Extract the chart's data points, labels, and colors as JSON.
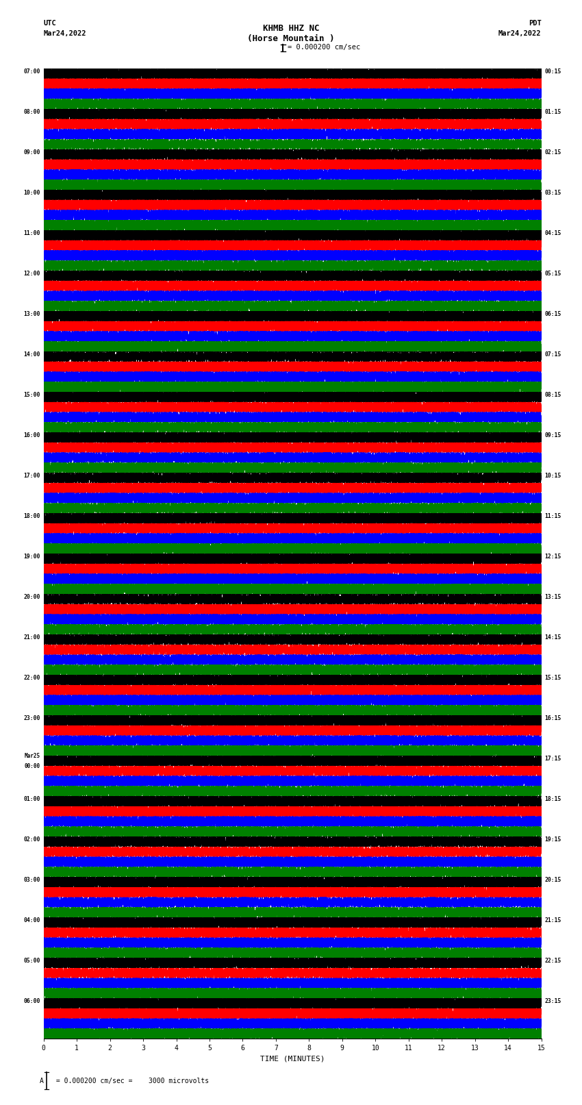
{
  "title_line1": "KHMB HHZ NC",
  "title_line2": "(Horse Mountain )",
  "scale_text": "= 0.000200 cm/sec",
  "left_header": "UTC",
  "left_date": "Mar24,2022",
  "right_header": "PDT",
  "right_date": "Mar24,2022",
  "bottom_label": "TIME (MINUTES)",
  "footnote": " = 0.000200 cm/sec =    3000 microvolts",
  "utc_labels": [
    "07:00",
    "08:00",
    "09:00",
    "10:00",
    "11:00",
    "12:00",
    "13:00",
    "14:00",
    "15:00",
    "16:00",
    "17:00",
    "18:00",
    "19:00",
    "20:00",
    "21:00",
    "22:00",
    "23:00",
    "Mar25\n00:00",
    "01:00",
    "02:00",
    "03:00",
    "04:00",
    "05:00",
    "06:00"
  ],
  "pdt_labels": [
    "00:15",
    "01:15",
    "02:15",
    "03:15",
    "04:15",
    "05:15",
    "06:15",
    "07:15",
    "08:15",
    "09:15",
    "10:15",
    "11:15",
    "12:15",
    "13:15",
    "14:15",
    "15:15",
    "16:15",
    "17:15",
    "18:15",
    "19:15",
    "20:15",
    "21:15",
    "22:15",
    "23:15"
  ],
  "trace_colors": [
    "black",
    "red",
    "blue",
    "green"
  ],
  "n_hours": 24,
  "traces_per_hour": 4,
  "minutes": 15,
  "sample_rate": 40,
  "amplitude_scale": 0.42,
  "background_color": "white",
  "fig_width": 8.5,
  "fig_height": 16.13,
  "dpi": 100
}
